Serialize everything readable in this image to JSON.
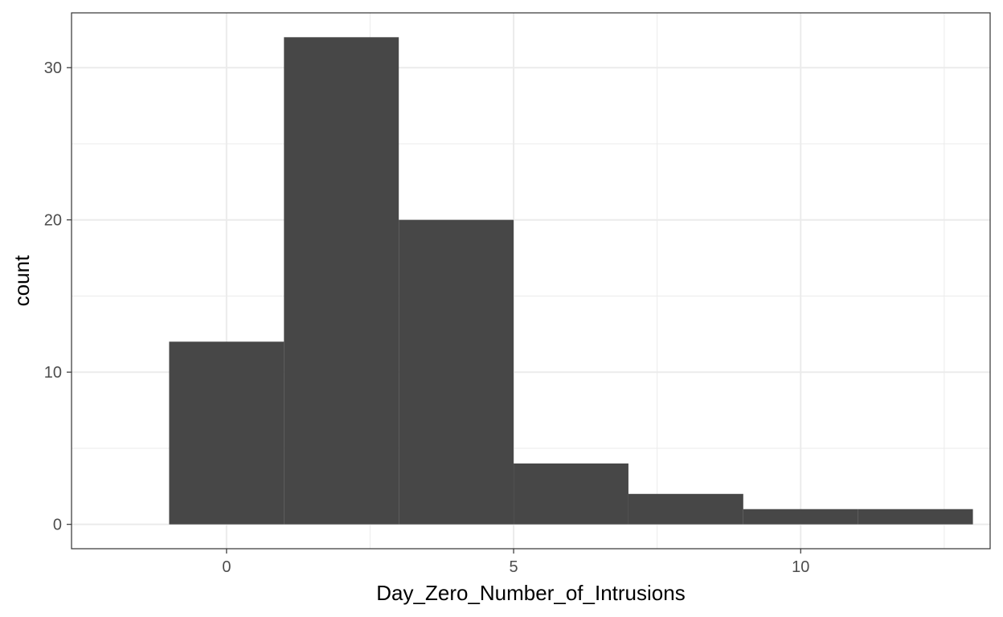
{
  "chart_data": {
    "type": "bar",
    "subtype": "histogram",
    "title": "",
    "xlabel": "Day_Zero_Number_of_Intrusions",
    "ylabel": "count",
    "bins": [
      {
        "x_start": -1,
        "x_end": 1,
        "count": 12
      },
      {
        "x_start": 1,
        "x_end": 3,
        "count": 32
      },
      {
        "x_start": 3,
        "x_end": 5,
        "count": 20
      },
      {
        "x_start": 5,
        "x_end": 7,
        "count": 4
      },
      {
        "x_start": 7,
        "x_end": 9,
        "count": 2
      },
      {
        "x_start": 9,
        "x_end": 11,
        "count": 1
      },
      {
        "x_start": 11,
        "x_end": 13,
        "count": 1
      }
    ],
    "xlim": [
      -2.7,
      13.3
    ],
    "ylim": [
      -1.6,
      33.6
    ],
    "x_ticks": [
      0,
      5,
      10
    ],
    "y_ticks": [
      0,
      10,
      20,
      30
    ],
    "x_minor_ticks": [
      2.5,
      7.5,
      12.5
    ],
    "y_minor_ticks": [
      5,
      15,
      25
    ],
    "grid": true,
    "legend": "none",
    "bar_color": "#474747",
    "grid_color": "#ebebeb",
    "background": "#ffffff"
  }
}
